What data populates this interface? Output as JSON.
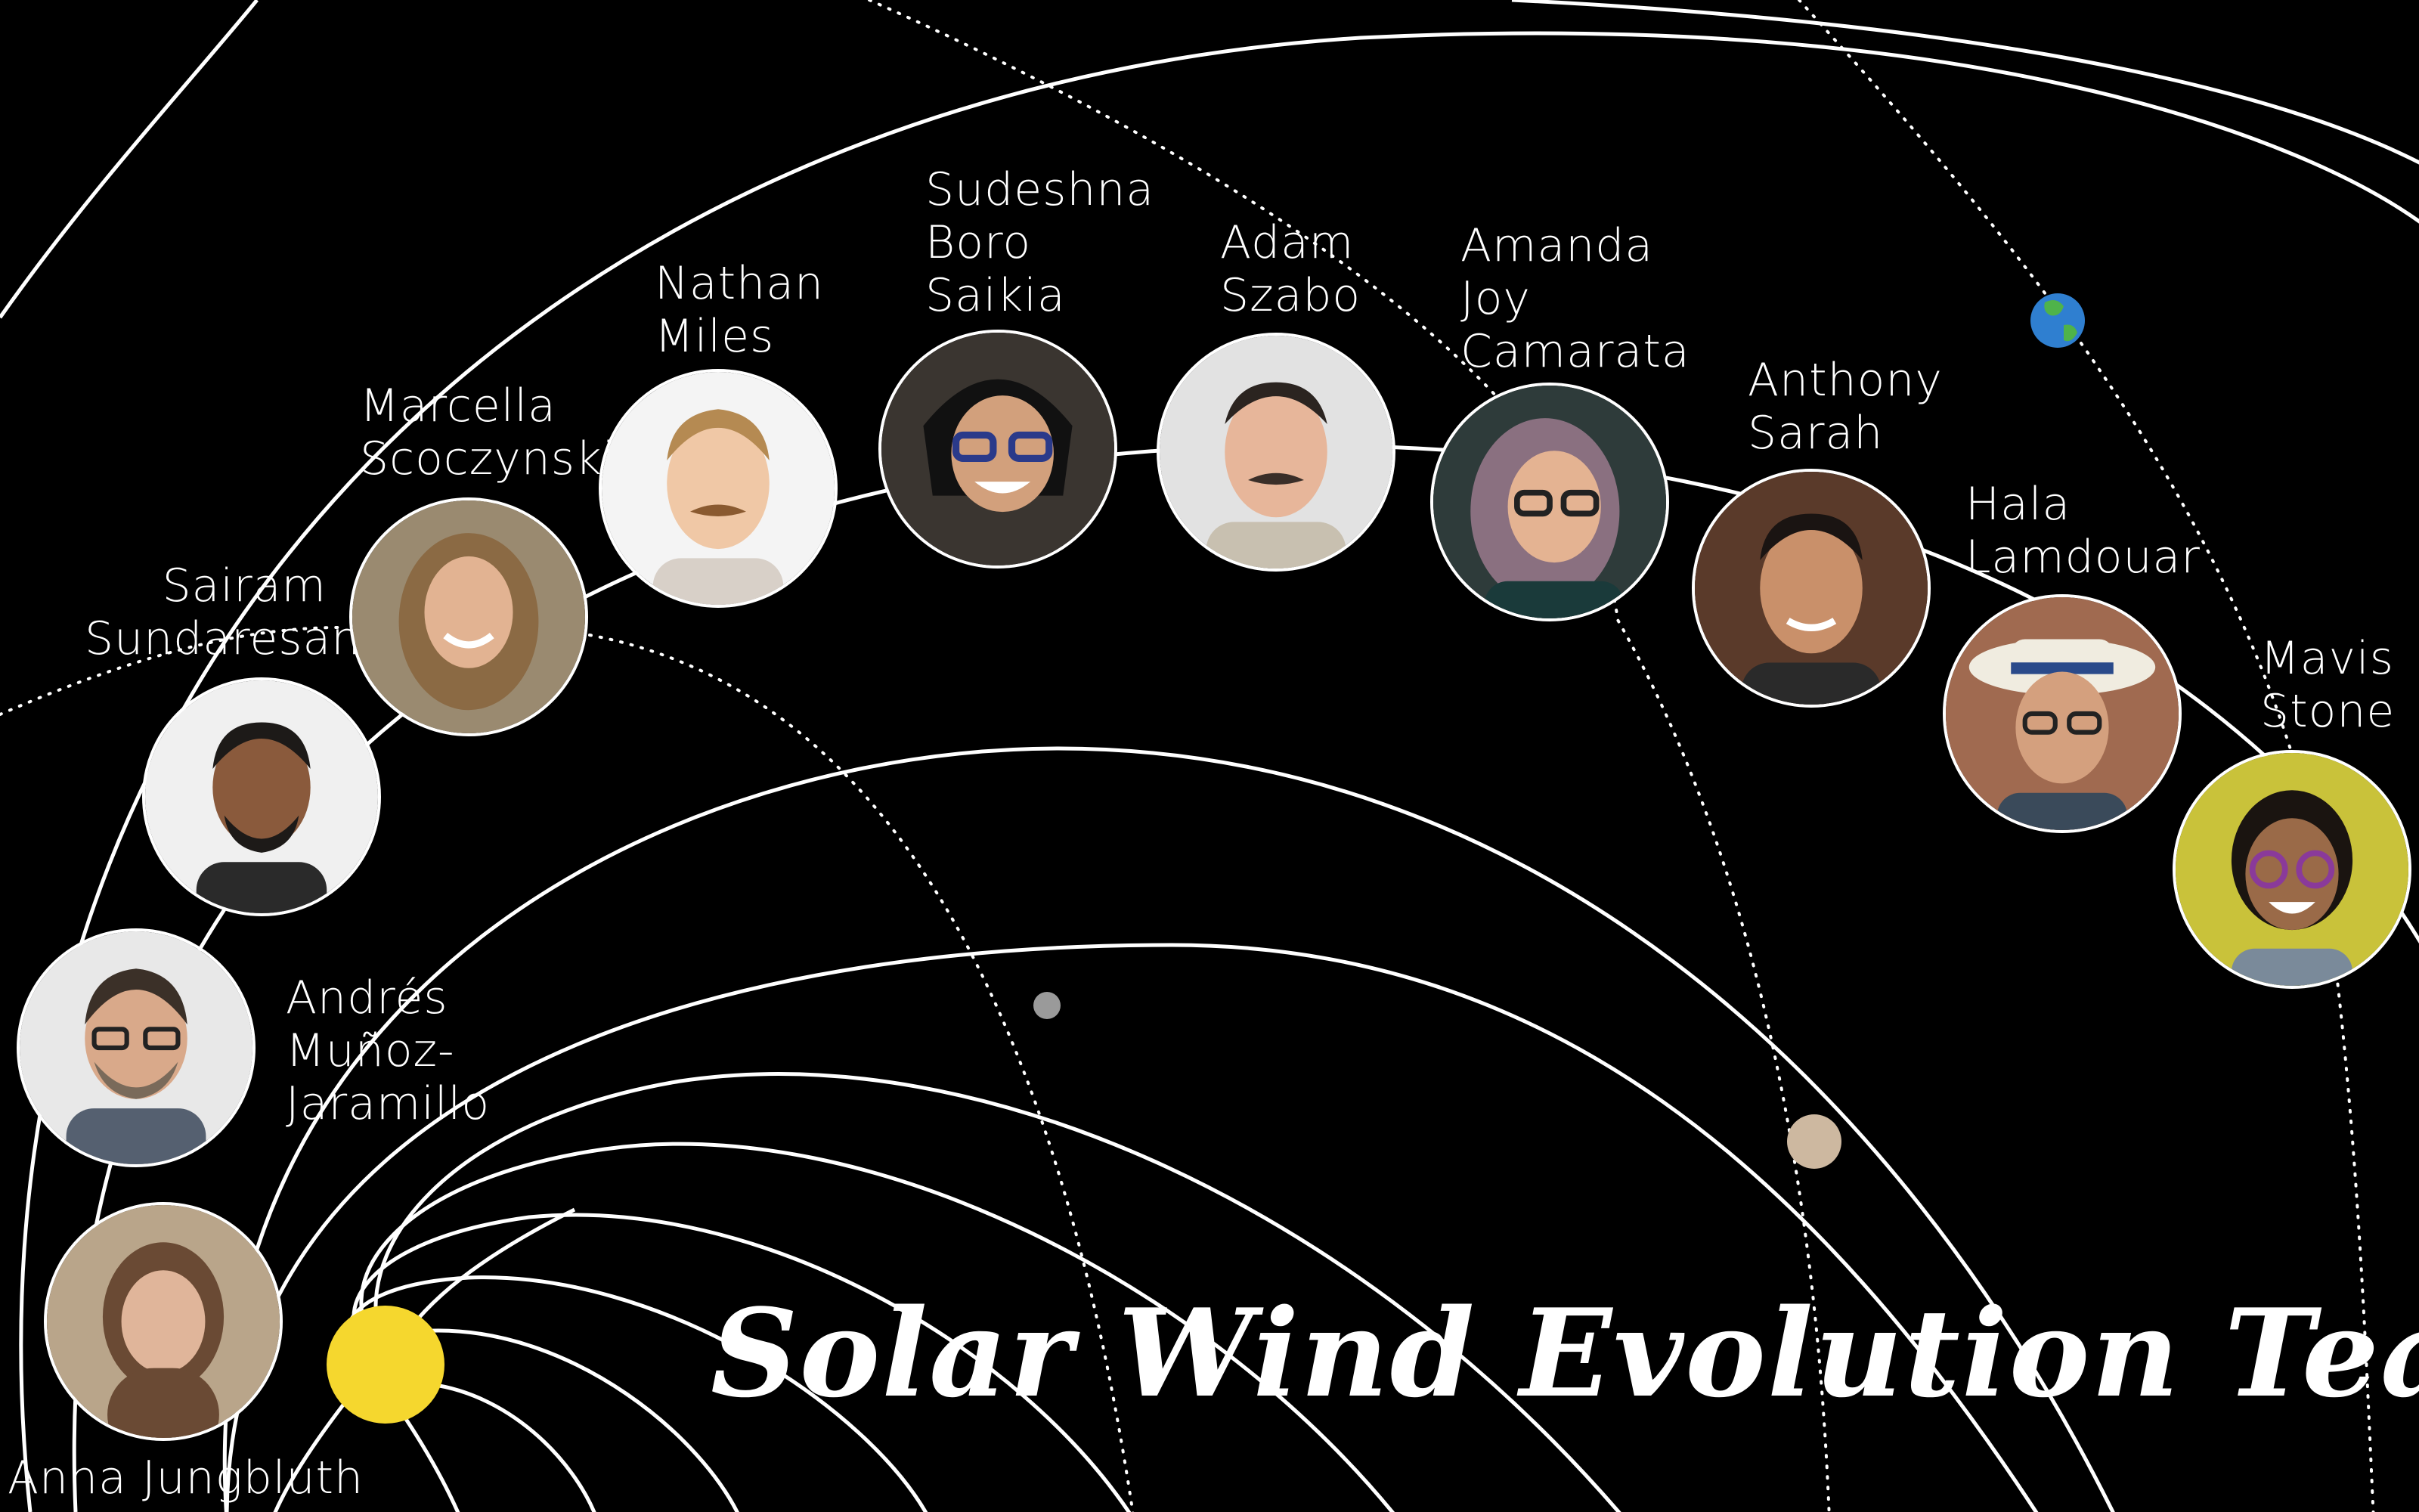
{
  "title": "Solar Wind Evolution Team",
  "colors": {
    "background": "#000000",
    "orbit": "#ffffff",
    "sun": "#f5d72e",
    "planet_small": "#9a9a9a",
    "planet_large": "#cdb8a0",
    "earth_ocean": "#2f7fd0",
    "earth_land": "#4fb34a"
  },
  "members": [
    {
      "id": "anna",
      "name": "Anna Jungbluth",
      "skin": "#e0b59a",
      "hair": "#6a4a34",
      "bg": "#b9a58a"
    },
    {
      "id": "andres",
      "name": "Andrés\nMuñoz-\nJaramillo",
      "skin": "#d9a98a",
      "hair": "#3b3028",
      "bg": "#e8e8e8"
    },
    {
      "id": "sairam",
      "name": "Sairam\nSundaresan",
      "skin": "#8a5a3c",
      "hair": "#1d1a18",
      "bg": "#f0f0f0"
    },
    {
      "id": "marcella",
      "name": "Marcella\nScoczynski",
      "skin": "#e2b392",
      "hair": "#8b6a44",
      "bg": "#9a8a70"
    },
    {
      "id": "nathan",
      "name": "Nathan\nMiles",
      "skin": "#f0c8a6",
      "hair": "#b58a52",
      "bg": "#f4f4f4"
    },
    {
      "id": "sudeshna",
      "name": "Sudeshna\nBoro\nSaikia",
      "skin": "#d2a07c",
      "hair": "#111111",
      "bg": "#3a3530"
    },
    {
      "id": "adam",
      "name": "Adam\nSzabo",
      "skin": "#e7b69a",
      "hair": "#2b2420",
      "bg": "#e2e2e2"
    },
    {
      "id": "amanda",
      "name": "Amanda\nJoy\nCamarata",
      "skin": "#e4b392",
      "hair": "#8a7080",
      "bg": "#2e3b3a"
    },
    {
      "id": "anthony",
      "name": "Anthony\nSarah",
      "skin": "#c9906a",
      "hair": "#1a1412",
      "bg": "#5a3a2a"
    },
    {
      "id": "hala",
      "name": "Hala\nLamdouar",
      "skin": "#d4a07e",
      "hair": "#2a1e18",
      "bg": "#a06a50"
    },
    {
      "id": "mavis",
      "name": "Mavis\nStone",
      "skin": "#9a6a48",
      "hair": "#1a1410",
      "bg": "#c9c23a"
    }
  ]
}
